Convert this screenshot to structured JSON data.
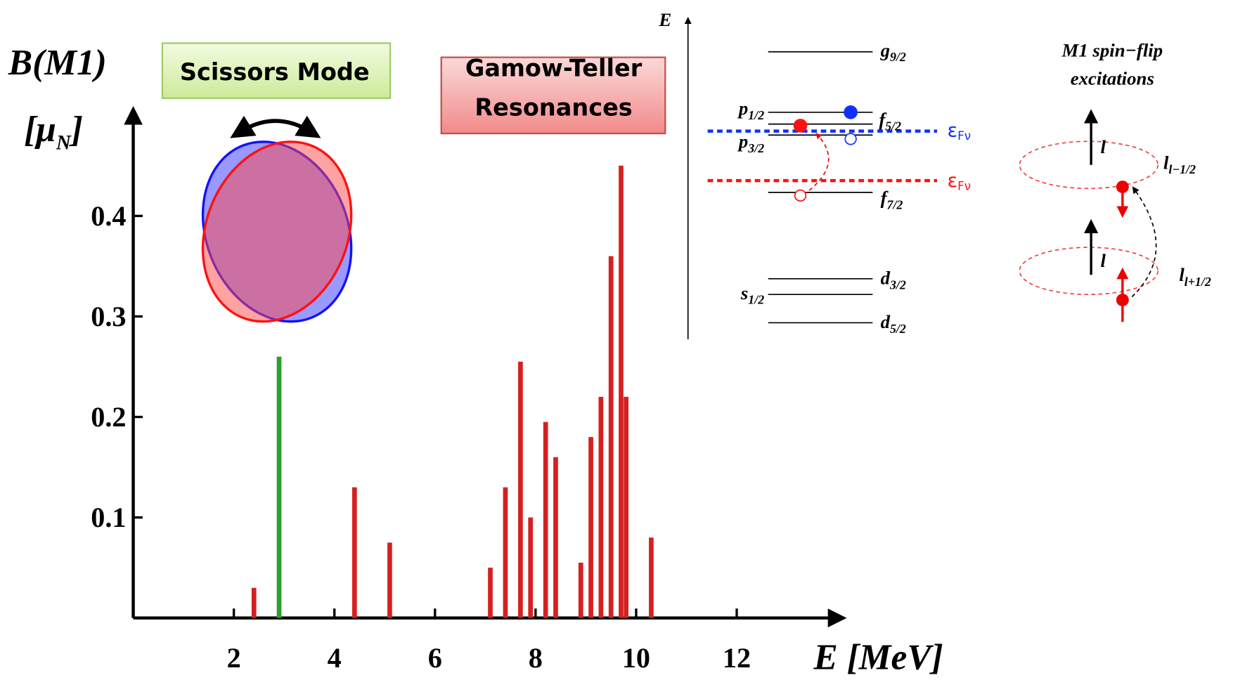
{
  "chart_data": {
    "type": "bar",
    "ylabel": "B(M1)",
    "yunit": [
      "[μ",
      "N",
      "]"
    ],
    "xlabel": "E [MeV]",
    "series": [
      {
        "name": "Scissors Mode",
        "color": "#2ca02c",
        "x": [
          2.9
        ],
        "values": [
          0.26
        ]
      },
      {
        "name": [
          "Gamow-Teller",
          "Resonances"
        ],
        "color": "#d62020",
        "x": [
          2.4,
          4.4,
          5.1,
          7.1,
          7.4,
          7.7,
          7.9,
          8.2,
          8.4,
          8.9,
          9.1,
          9.3,
          9.5,
          9.7,
          9.8,
          10.3
        ],
        "values": [
          0.03,
          0.13,
          0.075,
          0.05,
          0.13,
          0.255,
          0.1,
          0.195,
          0.16,
          0.055,
          0.18,
          0.22,
          0.36,
          0.45,
          0.22,
          0.08
        ]
      }
    ],
    "xlim": [
      0,
      14
    ],
    "ylim": [
      0,
      0.5
    ],
    "xticks": [
      2,
      4,
      6,
      8,
      10,
      12
    ],
    "yticks": [
      0.1,
      0.2,
      0.3,
      0.4
    ]
  },
  "level_scheme": {
    "axis": "E",
    "levels_right": [
      [
        "g",
        "9/2"
      ],
      [
        "f",
        "5/2"
      ],
      [
        "f",
        "7/2"
      ],
      [
        "d",
        "3/2"
      ],
      [
        "d",
        "5/2"
      ]
    ],
    "levels_left": [
      [
        "p",
        "1/2"
      ],
      [
        "p",
        "3/2"
      ],
      [
        "s",
        "1/2"
      ]
    ],
    "fermi": [
      [
        "ε",
        "Fν"
      ],
      [
        "ε",
        "Fν"
      ]
    ]
  },
  "spin_flip": {
    "title": [
      "M1 spin−flip",
      "excitations"
    ],
    "labels": [
      "l",
      "l"
    ],
    "sublabels": [
      [
        "l",
        "l−1/2"
      ],
      [
        "l",
        "l+1/2"
      ]
    ]
  }
}
